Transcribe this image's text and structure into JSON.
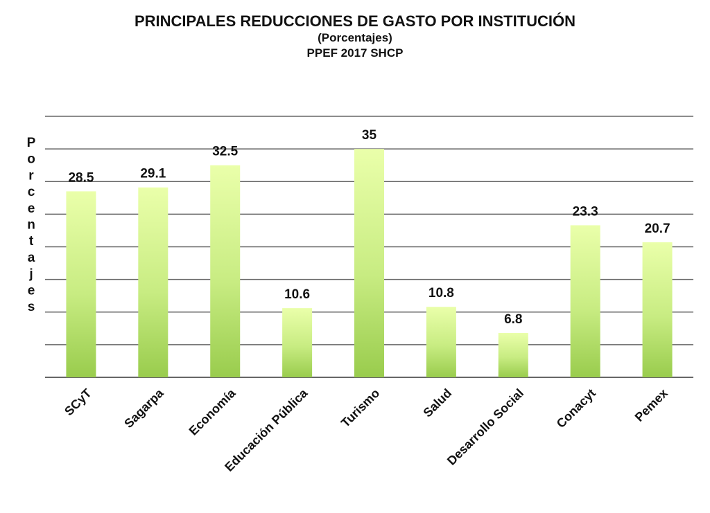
{
  "chart_data": {
    "type": "bar",
    "title": "PRINCIPALES REDUCCIONES DE GASTO POR INSTITUCIÓN",
    "subtitle": "(Porcentajes)",
    "subtitle2": "PPEF 2017 SHCP",
    "ylabel": "Porcentajes",
    "xlabel": "",
    "categories": [
      "SCyT",
      "Sagarpa",
      "Economía",
      "Educación Pública",
      "Turismo",
      "Salud",
      "Desarrollo Social",
      "Conacyt",
      "Pemex"
    ],
    "values": [
      28.5,
      29.1,
      32.5,
      10.6,
      35,
      10.8,
      6.8,
      23.3,
      20.7
    ],
    "data_labels": [
      "28.5",
      "29.1",
      "32.5",
      "10.6",
      "35",
      "10.8",
      "6.8",
      "23.3",
      "20.7"
    ],
    "ylim": [
      0,
      40
    ],
    "gridlines": [
      5,
      10,
      15,
      20,
      25,
      30,
      35,
      40
    ],
    "grid": true,
    "legend": "none",
    "bar_color_top": "#eaffaa",
    "bar_color_bottom": "#99cc4d",
    "grid_color": "#666666"
  }
}
